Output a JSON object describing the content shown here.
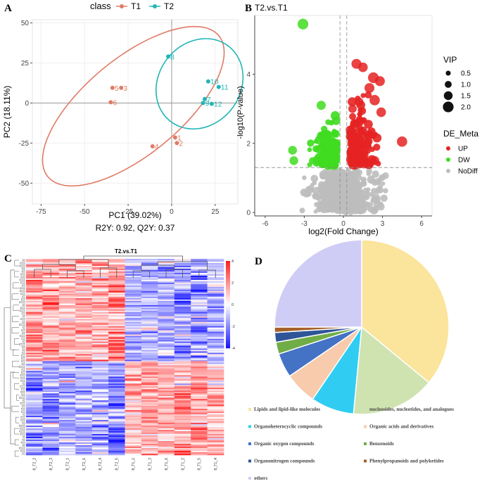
{
  "chart_data": [
    {
      "panel": "A",
      "type": "scatter",
      "title": "",
      "xlabel": "PC1 (39.02%)",
      "ylabel": "PC2 (18.11%)",
      "subtitle": "R2Y: 0.92, Q2Y: 0.37",
      "xlim": [
        -80,
        38
      ],
      "ylim": [
        -63,
        52
      ],
      "xticks": [
        -75,
        -50,
        -25,
        0,
        25
      ],
      "yticks": [
        50,
        25,
        0,
        -25,
        -50
      ],
      "legend_title": "class",
      "series": [
        {
          "name": "T1",
          "color": "#e07b66",
          "points": [
            {
              "x": -34,
              "y": 9.5,
              "label": "5"
            },
            {
              "x": -29,
              "y": 9.5,
              "label": "3"
            },
            {
              "x": -35,
              "y": 0.5,
              "label": "6"
            },
            {
              "x": -11,
              "y": -27,
              "label": "4"
            },
            {
              "x": 2,
              "y": -21.5,
              "label": "1"
            },
            {
              "x": 3,
              "y": -25,
              "label": "2"
            }
          ],
          "ellipse": {
            "cx": -22,
            "cy": -2,
            "rx": 66,
            "ry": 29,
            "angle": 43
          }
        },
        {
          "name": "T2",
          "color": "#22b5b5",
          "points": [
            {
              "x": -2,
              "y": 29,
              "label": "8"
            },
            {
              "x": 21,
              "y": 13.5,
              "label": "10"
            },
            {
              "x": 27,
              "y": 10,
              "label": "11"
            },
            {
              "x": 19,
              "y": 2.5,
              "label": "7"
            },
            {
              "x": 18,
              "y": 0,
              "label": "9"
            },
            {
              "x": 23,
              "y": -0.5,
              "label": "12"
            }
          ],
          "ellipse": {
            "cx": 16,
            "cy": 12,
            "rx": 24,
            "ry": 29,
            "angle": -25
          }
        }
      ]
    },
    {
      "panel": "B",
      "type": "scatter",
      "title": "T2.vs.T1",
      "xlabel": "log2(Fold Change)",
      "ylabel": "-log10(P-value)",
      "xlim": [
        -6.8,
        6.8
      ],
      "ylim": [
        -0.1,
        5.7
      ],
      "xticks": [
        -6,
        -3,
        0,
        3,
        6
      ],
      "yticks": [
        0,
        2,
        4
      ],
      "thresholds": {
        "x": [
          -0.26,
          0.26
        ],
        "y": 1.3
      },
      "legend_vip_title": "VIP",
      "legend_vip": [
        "0.5",
        "1.0",
        "1.5",
        "2.0"
      ],
      "legend_group_title": "DE_Meta",
      "groups": [
        {
          "name": "UP",
          "color": "#e52222"
        },
        {
          "name": "DW",
          "color": "#3fdc1f"
        },
        {
          "name": "NoDiff",
          "color": "#bdbdbd"
        }
      ],
      "highlight_points": [
        {
          "x": -3.1,
          "y": 5.45,
          "vip": 2.0,
          "group": "DW"
        },
        {
          "x": -1.7,
          "y": 3.1,
          "vip": 1.6,
          "group": "DW"
        },
        {
          "x": -3.9,
          "y": 1.8,
          "vip": 1.5,
          "group": "DW"
        },
        {
          "x": -3.8,
          "y": 1.5,
          "vip": 1.5,
          "group": "DW"
        },
        {
          "x": 1.0,
          "y": 4.3,
          "vip": 1.8,
          "group": "UP"
        },
        {
          "x": 1.5,
          "y": 4.2,
          "vip": 1.7,
          "group": "UP"
        },
        {
          "x": 2.3,
          "y": 3.9,
          "vip": 2.0,
          "group": "UP"
        },
        {
          "x": 2.0,
          "y": 3.6,
          "vip": 1.8,
          "group": "UP"
        },
        {
          "x": 2.8,
          "y": 3.8,
          "vip": 1.8,
          "group": "UP"
        },
        {
          "x": 2.4,
          "y": 3.25,
          "vip": 1.9,
          "group": "UP"
        },
        {
          "x": 4.5,
          "y": 2.05,
          "vip": 1.9,
          "group": "UP"
        },
        {
          "x": 2.9,
          "y": 2.9,
          "vip": 1.7,
          "group": "UP"
        },
        {
          "x": 2.4,
          "y": 1.5,
          "vip": 1.6,
          "group": "UP"
        },
        {
          "x": 1.2,
          "y": 3.2,
          "vip": 1.5,
          "group": "UP"
        },
        {
          "x": 0.7,
          "y": 3.0,
          "vip": 1.4,
          "group": "UP"
        }
      ],
      "cloud_counts": {
        "UP": 160,
        "DW": 110,
        "NoDiff": 700
      }
    },
    {
      "panel": "C",
      "type": "heatmap",
      "title": "T2.vs.T1",
      "samples": [
        "8_T2_2",
        "8_T2_3",
        "8_T2_1",
        "8_T2_6",
        "8_T2_4",
        "8_T2_5",
        "8_T1_1",
        "8_T1_3",
        "8_T1_6",
        "8_T1_2",
        "8_T1_5",
        "8_T1_4"
      ],
      "colorbar_ticks": [
        "4",
        "2",
        "0",
        "-2",
        "-4"
      ],
      "vrange": [
        -4,
        4
      ],
      "rows": 140
    },
    {
      "panel": "D",
      "type": "pie",
      "labels": [
        "Lipids and lipid-like molecules",
        "nucleosides, nucleotides, and analogues",
        "Organoheterocyclic compounds",
        "Organic acids and derivatives",
        "Organic oxygen compounds",
        "Benzenoids",
        "Organonitrogen compounds",
        "Phenylpropanoids and polyketides",
        "others"
      ],
      "values": [
        36.0,
        15.5,
        8.0,
        6.0,
        4.5,
        2.2,
        1.8,
        1.0,
        25.0
      ],
      "colors": [
        "#fbe49b",
        "#cfe3b1",
        "#31ccf2",
        "#f7cbac",
        "#4472c4",
        "#70ad47",
        "#2f5597",
        "#a5612a",
        "#cfcdf5"
      ]
    }
  ],
  "panel_letters": [
    "A",
    "B",
    "C",
    "D"
  ]
}
